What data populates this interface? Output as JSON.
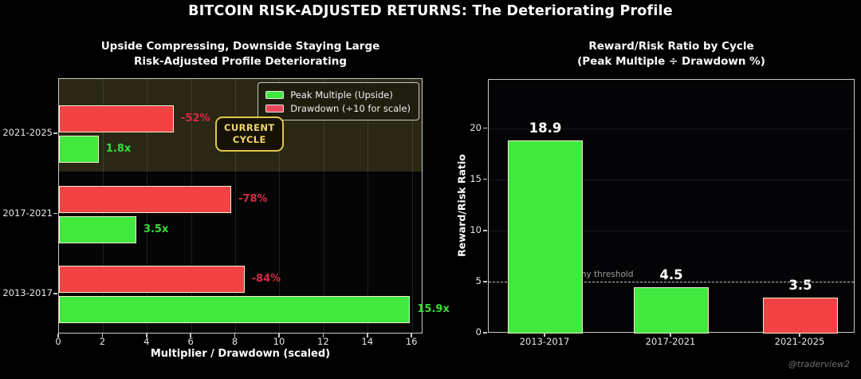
{
  "page": {
    "background": "#000000",
    "watermark": "@traderview2"
  },
  "header": {
    "title": "BITCOIN RISK-ADJUSTED RETURNS: The Deteriorating Profile"
  },
  "chart_data": [
    {
      "id": "risk-profile",
      "type": "bar",
      "orientation": "horizontal",
      "title_line1": "Upside Compressing, Downside Staying Large",
      "title_line2": "Risk-Adjusted Profile Deteriorating",
      "xlabel": "Multiplier / Drawdown (scaled)",
      "categories": [
        "2021-2025",
        "2017-2021",
        "2013-2017"
      ],
      "series": [
        {
          "name": "Drawdown (÷10 for scale)",
          "values": [
            5.2,
            7.8,
            8.4
          ],
          "bar_labels": [
            "-52%",
            "-78%",
            "-84%"
          ],
          "bar_color": "#f14343",
          "label_color": "#d62a45"
        },
        {
          "name": "Peak Multiple (Upside)",
          "values": [
            1.8,
            3.5,
            15.9
          ],
          "bar_labels": [
            "1.8x",
            "3.5x",
            "15.9x"
          ],
          "bar_color": "#41e83e",
          "label_color": "#38df38"
        }
      ],
      "legend": [
        {
          "label": "Peak Multiple (Upside)",
          "color": "#41e83e"
        },
        {
          "label": "Drawdown (÷10 for scale)",
          "color": "#e8475c"
        }
      ],
      "xticks": [
        0,
        2,
        4,
        6,
        8,
        10,
        12,
        14,
        16
      ],
      "xlim": [
        0,
        16.5
      ],
      "grid": "vertical",
      "annotation": {
        "line1": "CURRENT",
        "line2": "CYCLE",
        "text_color": "#f2d569",
        "border_color": "#e3c44d"
      },
      "highlight_band": {
        "category": "2021-2025",
        "color": "#2a2814"
      }
    },
    {
      "id": "reward-risk-ratio",
      "type": "bar",
      "orientation": "vertical",
      "title_line1": "Reward/Risk Ratio by Cycle",
      "title_line2": "(Peak Multiple ÷ Drawdown %)",
      "ylabel": "Reward/Risk Ratio",
      "categories": [
        "2013-2017",
        "2017-2021",
        "2021-2025"
      ],
      "values": [
        18.9,
        4.5,
        3.5
      ],
      "bar_labels": [
        "18.9",
        "4.5",
        "3.5"
      ],
      "bar_colors": [
        "#41e83e",
        "#41e83e",
        "#f14343"
      ],
      "yticks": [
        0,
        5,
        10,
        15,
        20
      ],
      "ylim": [
        0,
        24.8
      ],
      "grid": "horizontal",
      "threshold": {
        "value": 5,
        "label": "Healthy threshold"
      }
    }
  ]
}
